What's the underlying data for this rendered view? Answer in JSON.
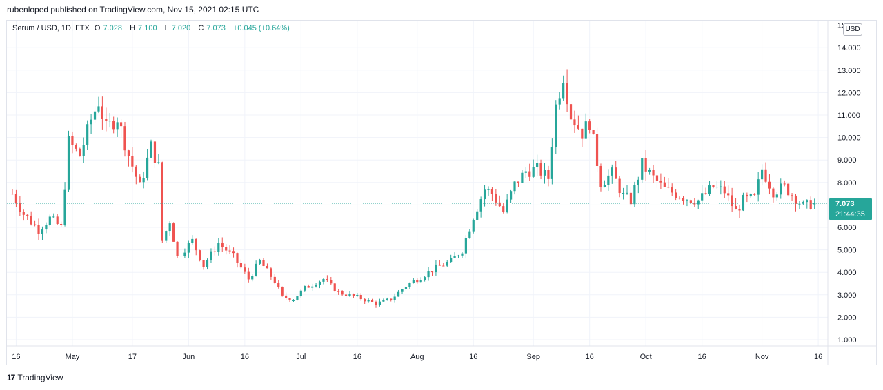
{
  "header": {
    "published": "rubenloped published on TradingView.com, Nov 15, 2021 02:15 UTC"
  },
  "legend": {
    "symbol": "Serum / USD, 1D, FTX",
    "o_label": "O",
    "o_val": "7.028",
    "h_label": "H",
    "h_val": "7.100",
    "l_label": "L",
    "l_val": "7.020",
    "c_label": "C",
    "c_val": "7.073",
    "change": "+0.045 (+0.64%)"
  },
  "price_axis": {
    "currency": "USD",
    "ticks": [
      "1.000",
      "2.000",
      "3.000",
      "4.000",
      "5.000",
      "6.000",
      "7.000",
      "8.000",
      "9.000",
      "10.000",
      "11.000",
      "12.000",
      "13.000",
      "14.000",
      "15"
    ]
  },
  "time_axis": {
    "labels": [
      "16",
      "May",
      "17",
      "Jun",
      "16",
      "Jul",
      "16",
      "Aug",
      "16",
      "Sep",
      "16",
      "Oct",
      "16",
      "Nov",
      "16"
    ]
  },
  "last_price": {
    "price": "7.073",
    "countdown": "21:44:35"
  },
  "footer": {
    "brand": "TradingView",
    "logo_text": "17"
  },
  "colors": {
    "up": "#26a69a",
    "down": "#ef5350",
    "grid": "#f0f3fa",
    "last_line": "#26a69a"
  },
  "chart_data": {
    "type": "candlestick",
    "title": "Serum / USD, 1D, FTX",
    "ylim": [
      1,
      15
    ],
    "x_start": "2021-04-15",
    "x_labels": [
      "16",
      "May",
      "17",
      "Jun",
      "16",
      "Jul",
      "16",
      "Aug",
      "16",
      "Sep",
      "16",
      "Oct",
      "16",
      "Nov",
      "16"
    ],
    "last_close": 7.073,
    "waypoints": [
      [
        "2021-04-15",
        7.5
      ],
      [
        "2021-04-18",
        6.6
      ],
      [
        "2021-04-22",
        5.9
      ],
      [
        "2021-04-25",
        6.4
      ],
      [
        "2021-04-28",
        6.0
      ],
      [
        "2021-04-30",
        9.8
      ],
      [
        "2021-05-03",
        9.2
      ],
      [
        "2021-05-06",
        10.8
      ],
      [
        "2021-05-08",
        11.6
      ],
      [
        "2021-05-10",
        10.4
      ],
      [
        "2021-05-13",
        10.9
      ],
      [
        "2021-05-16",
        9.2
      ],
      [
        "2021-05-19",
        7.8
      ],
      [
        "2021-05-22",
        9.6
      ],
      [
        "2021-05-24",
        8.7
      ],
      [
        "2021-05-25",
        5.4
      ],
      [
        "2021-05-27",
        6.3
      ],
      [
        "2021-05-29",
        4.7
      ],
      [
        "2021-06-02",
        5.4
      ],
      [
        "2021-06-05",
        4.3
      ],
      [
        "2021-06-09",
        5.3
      ],
      [
        "2021-06-13",
        4.7
      ],
      [
        "2021-06-17",
        3.7
      ],
      [
        "2021-06-20",
        4.5
      ],
      [
        "2021-06-24",
        3.6
      ],
      [
        "2021-06-26",
        2.9
      ],
      [
        "2021-06-29",
        2.8
      ],
      [
        "2021-07-02",
        3.3
      ],
      [
        "2021-07-07",
        3.7
      ],
      [
        "2021-07-11",
        3.1
      ],
      [
        "2021-07-16",
        2.9
      ],
      [
        "2021-07-21",
        2.6
      ],
      [
        "2021-07-25",
        2.8
      ],
      [
        "2021-07-29",
        3.4
      ],
      [
        "2021-08-02",
        3.8
      ],
      [
        "2021-08-06",
        4.2
      ],
      [
        "2021-08-10",
        4.5
      ],
      [
        "2021-08-13",
        5.0
      ],
      [
        "2021-08-16",
        6.5
      ],
      [
        "2021-08-19",
        7.7
      ],
      [
        "2021-08-21",
        7.5
      ],
      [
        "2021-08-24",
        6.7
      ],
      [
        "2021-08-27",
        7.9
      ],
      [
        "2021-08-30",
        8.5
      ],
      [
        "2021-09-02",
        8.6
      ],
      [
        "2021-09-05",
        8.2
      ],
      [
        "2021-09-07",
        11.4
      ],
      [
        "2021-09-09",
        12.8
      ],
      [
        "2021-09-11",
        11.0
      ],
      [
        "2021-09-14",
        10.2
      ],
      [
        "2021-09-16",
        10.7
      ],
      [
        "2021-09-19",
        8.0
      ],
      [
        "2021-09-22",
        8.4
      ],
      [
        "2021-09-25",
        7.4
      ],
      [
        "2021-09-27",
        7.2
      ],
      [
        "2021-09-30",
        8.8
      ],
      [
        "2021-10-03",
        8.2
      ],
      [
        "2021-10-06",
        7.7
      ],
      [
        "2021-10-09",
        7.5
      ],
      [
        "2021-10-12",
        7.3
      ],
      [
        "2021-10-15",
        7.2
      ],
      [
        "2021-10-19",
        7.8
      ],
      [
        "2021-10-22",
        7.6
      ],
      [
        "2021-10-25",
        6.7
      ],
      [
        "2021-10-27",
        7.2
      ],
      [
        "2021-10-30",
        7.3
      ],
      [
        "2021-11-01",
        8.6
      ],
      [
        "2021-11-04",
        7.6
      ],
      [
        "2021-11-07",
        7.8
      ],
      [
        "2021-11-10",
        7.3
      ],
      [
        "2021-11-12",
        6.95
      ],
      [
        "2021-11-15",
        7.073
      ]
    ]
  }
}
